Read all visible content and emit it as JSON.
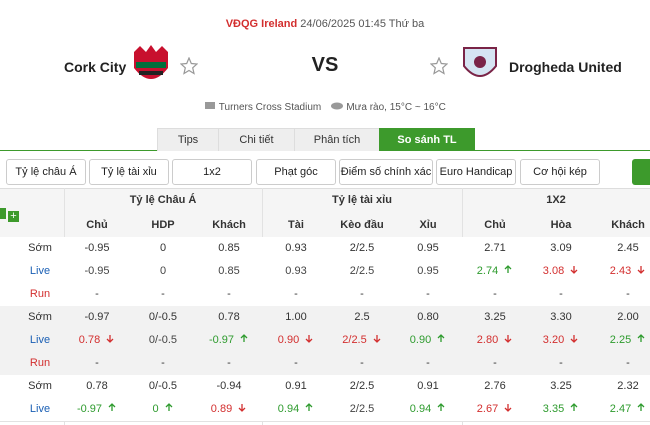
{
  "header": {
    "league": "VĐQG Ireland",
    "datetime": "24/06/2025 01:45 Thứ ba",
    "home": "Cork City",
    "vs": "VS",
    "away": "Drogheda United",
    "venue": "Turners Cross Stadium",
    "weather": "Mưa rào, 15°C ~ 16°C"
  },
  "tabs": {
    "items": [
      "Tips",
      "Chi tiết",
      "Phân tích",
      "So sánh TL"
    ],
    "active": 3
  },
  "filters": [
    "Tỷ lệ châu Á",
    "Tỷ lệ tài xỉu",
    "1x2",
    "Phạt góc",
    "Điểm số chính xác",
    "Euro Handicap",
    "Cơ hội kép"
  ],
  "table": {
    "groups": [
      "Tỷ lệ Châu Á",
      "Tỷ lệ tài xỉu",
      "1X2"
    ],
    "columns": [
      "Chủ",
      "HDP",
      "Khách",
      "Tài",
      "Kèo đầu",
      "Xỉu",
      "Chủ",
      "Hòa",
      "Khách"
    ],
    "blocks": [
      {
        "rows": [
          {
            "label": "Sớm",
            "cells": [
              "-0.95",
              "0",
              "0.85",
              "0.93",
              "2/2.5",
              "0.95",
              "2.71",
              "3.09",
              "2.45"
            ]
          },
          {
            "label": "Live",
            "cells": [
              "-0.95",
              "0",
              "0.85",
              "0.93",
              "2/2.5",
              "0.95",
              {
                "text": "2.74",
                "dir": "up"
              },
              {
                "text": "3.08",
                "dir": "down"
              },
              {
                "text": "2.43",
                "dir": "down"
              }
            ]
          },
          {
            "label": "Run",
            "cells": [
              "-",
              "-",
              "-",
              "-",
              "-",
              "-",
              "-",
              "-",
              "-"
            ]
          }
        ]
      },
      {
        "rows": [
          {
            "label": "Sớm",
            "cells": [
              "-0.97",
              "0/-0.5",
              "0.78",
              "1.00",
              "2.5",
              "0.80",
              "3.25",
              "3.30",
              "2.00"
            ]
          },
          {
            "label": "Live",
            "cells": [
              {
                "text": "0.78",
                "dir": "down"
              },
              "0/-0.5",
              {
                "text": "-0.97",
                "dir": "up"
              },
              {
                "text": "0.90",
                "dir": "down"
              },
              {
                "text": "2/2.5",
                "dir": "down"
              },
              {
                "text": "0.90",
                "dir": "up"
              },
              {
                "text": "2.80",
                "dir": "down"
              },
              {
                "text": "3.20",
                "dir": "down"
              },
              {
                "text": "2.25",
                "dir": "up"
              }
            ]
          },
          {
            "label": "Run",
            "cells": [
              "-",
              "-",
              "-",
              "-",
              "-",
              "-",
              "-",
              "-",
              "-"
            ]
          }
        ]
      },
      {
        "rows": [
          {
            "label": "Sớm",
            "cells": [
              "0.78",
              "0/-0.5",
              "-0.94",
              "0.91",
              "2/2.5",
              "0.91",
              "2.76",
              "3.25",
              "2.32"
            ]
          },
          {
            "label": "Live",
            "cells": [
              {
                "text": "-0.97",
                "dir": "up"
              },
              {
                "text": "0",
                "dir": "up"
              },
              {
                "text": "0.89",
                "dir": "down"
              },
              {
                "text": "0.94",
                "dir": "up"
              },
              "2/2.5",
              {
                "text": "0.94",
                "dir": "up"
              },
              {
                "text": "2.67",
                "dir": "down"
              },
              {
                "text": "3.35",
                "dir": "up"
              },
              {
                "text": "2.47",
                "dir": "up"
              }
            ]
          }
        ]
      }
    ]
  }
}
